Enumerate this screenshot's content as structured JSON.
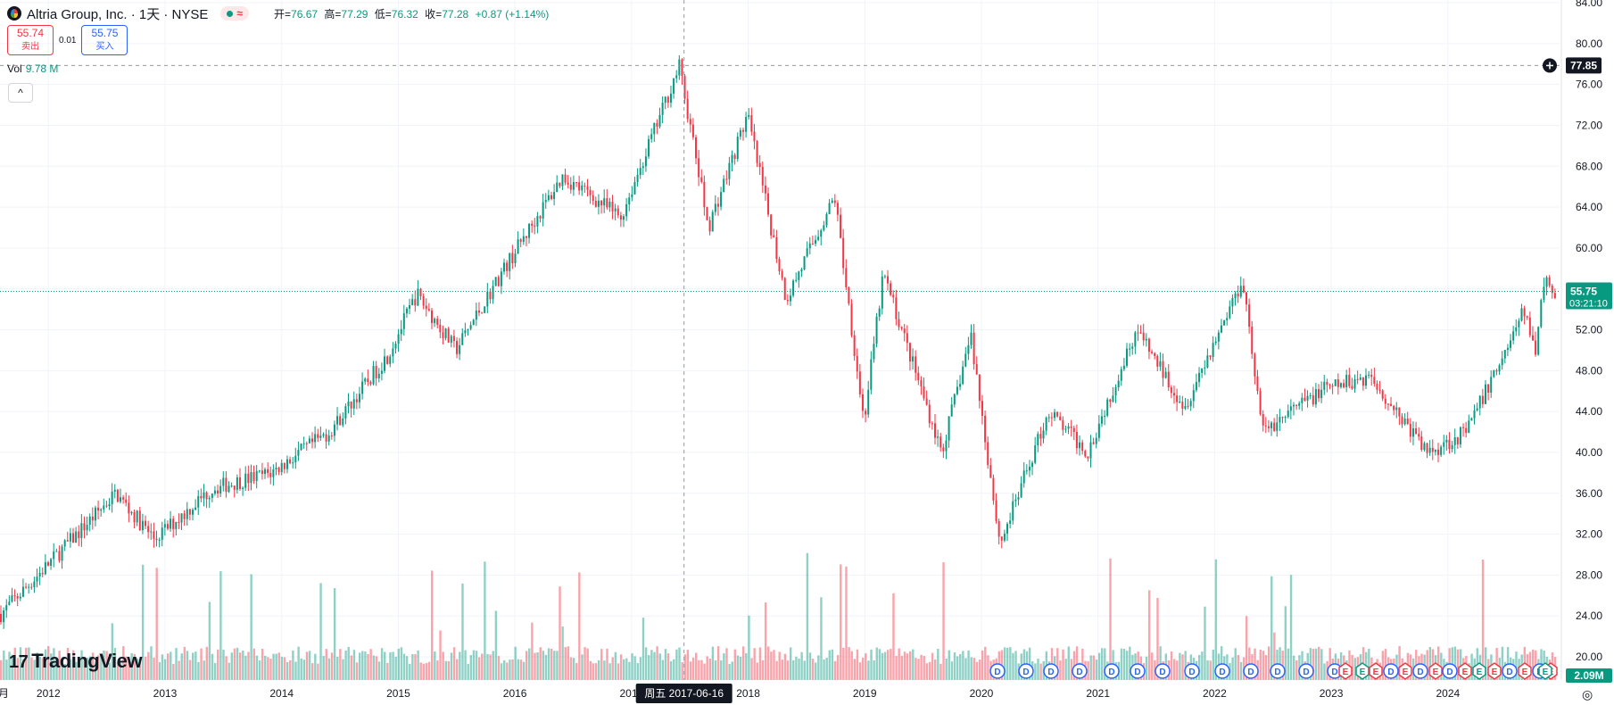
{
  "header": {
    "title": "Altria Group, Inc. · 1天 · NYSE",
    "pill_wave": "≈",
    "ohlc": [
      {
        "label": "开=",
        "value": "76.67"
      },
      {
        "label": "高=",
        "value": "77.29"
      },
      {
        "label": "低=",
        "value": "76.32"
      },
      {
        "label": "收=",
        "value": "77.28"
      }
    ],
    "change": "+0.87 (+1.14%)"
  },
  "trade": {
    "sell_price": "55.74",
    "sell_label": "卖出",
    "spread": "0.01",
    "buy_price": "55.75",
    "buy_label": "买入"
  },
  "volume_legend": {
    "label": "Vol",
    "value": "9.78 M"
  },
  "collapse_glyph": "^",
  "brand": {
    "mark": "17",
    "name": "TradingView"
  },
  "settings_glyph": "◎",
  "colors": {
    "up": "#089981",
    "down": "#f23645",
    "dividend": "#2962ff",
    "earnings_up": "#089981",
    "earnings_down": "#f23645"
  },
  "chart_data": {
    "type": "candlestick",
    "symbol": "Altria Group, Inc.",
    "interval": "1天",
    "exchange": "NYSE",
    "y_ticks": [
      "84.00",
      "80.00",
      "76.00",
      "72.00",
      "68.00",
      "64.00",
      "60.00",
      "56.00",
      "52.00",
      "48.00",
      "44.00",
      "40.00",
      "36.00",
      "32.00",
      "28.00",
      "24.00",
      "20.00"
    ],
    "ylim": [
      20,
      84
    ],
    "x_ticks": [
      "月",
      "2012",
      "2013",
      "2014",
      "2015",
      "2016",
      "2017",
      "2018",
      "2019",
      "2020",
      "2021",
      "2022",
      "2023",
      "2024"
    ],
    "price_series_year_close": [
      {
        "x": "2011-08",
        "y": 24.0
      },
      {
        "x": "2011-12",
        "y": 28.0
      },
      {
        "x": "2012-05",
        "y": 33.0
      },
      {
        "x": "2012-08",
        "y": 36.0
      },
      {
        "x": "2012-12",
        "y": 31.5
      },
      {
        "x": "2013-06",
        "y": 36.5
      },
      {
        "x": "2013-12",
        "y": 38.0
      },
      {
        "x": "2014-06",
        "y": 42.0
      },
      {
        "x": "2014-12",
        "y": 49.5
      },
      {
        "x": "2015-03",
        "y": 55.5
      },
      {
        "x": "2015-07",
        "y": 50.0
      },
      {
        "x": "2015-12",
        "y": 58.0
      },
      {
        "x": "2016-06",
        "y": 67.0
      },
      {
        "x": "2016-12",
        "y": 63.0
      },
      {
        "x": "2017-06",
        "y": 77.8
      },
      {
        "x": "2017-09",
        "y": 62.0
      },
      {
        "x": "2018-01",
        "y": 73.0
      },
      {
        "x": "2018-05",
        "y": 55.0
      },
      {
        "x": "2018-10",
        "y": 65.0
      },
      {
        "x": "2019-01",
        "y": 43.0
      },
      {
        "x": "2019-03",
        "y": 57.5
      },
      {
        "x": "2019-09",
        "y": 40.0
      },
      {
        "x": "2019-12",
        "y": 51.5
      },
      {
        "x": "2020-03",
        "y": 31.0
      },
      {
        "x": "2020-08",
        "y": 44.0
      },
      {
        "x": "2020-12",
        "y": 40.0
      },
      {
        "x": "2021-05",
        "y": 52.0
      },
      {
        "x": "2021-10",
        "y": 44.5
      },
      {
        "x": "2022-04",
        "y": 57.0
      },
      {
        "x": "2022-06",
        "y": 42.0
      },
      {
        "x": "2022-12",
        "y": 46.0
      },
      {
        "x": "2023-05",
        "y": 47.5
      },
      {
        "x": "2023-11",
        "y": 40.0
      },
      {
        "x": "2024-03",
        "y": 42.0
      },
      {
        "x": "2024-06",
        "y": 48.0
      },
      {
        "x": "2024-09",
        "y": 54.0
      },
      {
        "x": "2024-10",
        "y": 49.5
      },
      {
        "x": "2024-11",
        "y": 57.0
      },
      {
        "x": "2024-12",
        "y": 55.75
      }
    ],
    "crosshair": {
      "price": "77.85",
      "date_label": "周五 2017-06-16"
    },
    "last_price": {
      "price": "55.75",
      "countdown": "03:21:10"
    },
    "volume_last": "2.09M",
    "event_markers": [
      "D",
      "D",
      "D",
      "D",
      "D",
      "D",
      "D",
      "D",
      "D",
      "D",
      "D",
      "D",
      "D",
      "E",
      "E",
      "E",
      "D",
      "E",
      "D",
      "E",
      "D",
      "E",
      "E",
      "E",
      "D",
      "E",
      "D",
      "E",
      "E"
    ],
    "grid": true
  }
}
